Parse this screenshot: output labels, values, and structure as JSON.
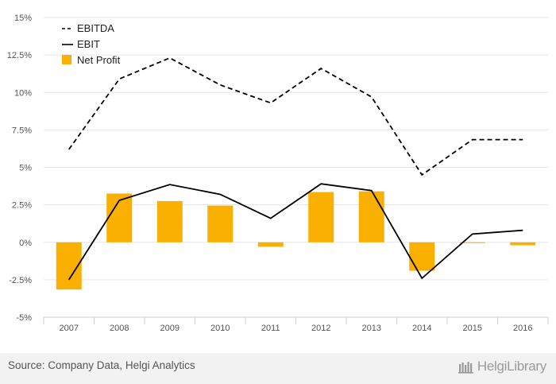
{
  "chart_data": {
    "type": "bar",
    "categories": [
      "2007",
      "2008",
      "2009",
      "2010",
      "2011",
      "2012",
      "2013",
      "2014",
      "2015",
      "2016"
    ],
    "series": [
      {
        "name": "EBITDA",
        "kind": "line",
        "style": "dashed",
        "color": "#000000",
        "values": [
          6.2,
          10.9,
          12.3,
          10.5,
          9.3,
          11.6,
          9.7,
          4.5,
          6.85,
          6.85
        ]
      },
      {
        "name": "EBIT",
        "kind": "line",
        "style": "solid",
        "color": "#000000",
        "values": [
          -2.5,
          2.8,
          3.85,
          3.2,
          1.6,
          3.9,
          3.45,
          -2.4,
          0.55,
          0.8
        ]
      },
      {
        "name": "Net Profit",
        "kind": "bar",
        "color": "#F9B000",
        "values": [
          -3.15,
          3.25,
          2.75,
          2.45,
          -0.3,
          3.35,
          3.4,
          -1.9,
          -0.05,
          -0.2
        ]
      }
    ],
    "y_ticks": [
      "15%",
      "12.5%",
      "10%",
      "7.5%",
      "5%",
      "2.5%",
      "0%",
      "-2.5%",
      "-5%"
    ],
    "ylim": [
      -5,
      15
    ],
    "grid": true,
    "legend_position": "top-left"
  },
  "footer": {
    "source": "Source: Company Data, Helgi Analytics",
    "brand": "HelgiLibrary"
  }
}
